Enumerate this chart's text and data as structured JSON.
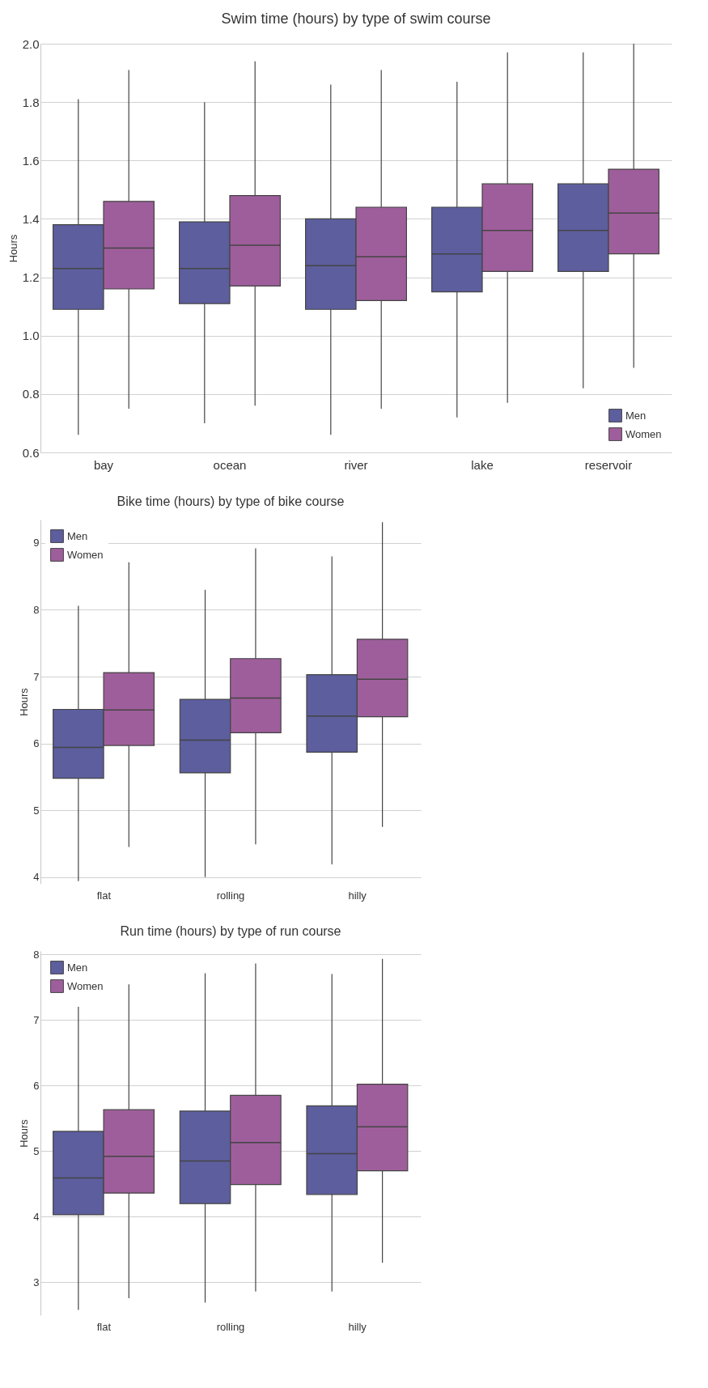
{
  "chart_data": [
    {
      "type": "box",
      "title": "Swim time (hours) by type of swim course",
      "ylabel": "Hours",
      "categories": [
        "bay",
        "ocean",
        "river",
        "lake",
        "reservoir"
      ],
      "series": [
        {
          "name": "Men",
          "color": "#5d5e9e",
          "boxes": [
            {
              "low": 0.66,
              "q1": 1.09,
              "median": 1.23,
              "q3": 1.38,
              "high": 1.81
            },
            {
              "low": 0.7,
              "q1": 1.11,
              "median": 1.23,
              "q3": 1.39,
              "high": 1.8
            },
            {
              "low": 0.66,
              "q1": 1.09,
              "median": 1.24,
              "q3": 1.4,
              "high": 1.86
            },
            {
              "low": 0.72,
              "q1": 1.15,
              "median": 1.28,
              "q3": 1.44,
              "high": 1.87
            },
            {
              "low": 0.82,
              "q1": 1.22,
              "median": 1.36,
              "q3": 1.52,
              "high": 1.97
            }
          ]
        },
        {
          "name": "Women",
          "color": "#9e5e9b",
          "boxes": [
            {
              "low": 0.75,
              "q1": 1.16,
              "median": 1.3,
              "q3": 1.46,
              "high": 1.91
            },
            {
              "low": 0.76,
              "q1": 1.17,
              "median": 1.31,
              "q3": 1.48,
              "high": 1.94
            },
            {
              "low": 0.75,
              "q1": 1.12,
              "median": 1.27,
              "q3": 1.44,
              "high": 1.91
            },
            {
              "low": 0.77,
              "q1": 1.22,
              "median": 1.36,
              "q3": 1.52,
              "high": 1.97
            },
            {
              "low": 0.89,
              "q1": 1.28,
              "median": 1.42,
              "q3": 1.57,
              "high": 2.0
            }
          ]
        }
      ],
      "ylim": [
        0.6,
        2.0
      ],
      "yticks": [
        0.6,
        0.8,
        {
          "value": 1,
          "label": "1.0"
        },
        1.2,
        1.4,
        1.6,
        1.8,
        {
          "value": 2,
          "label": "2.0"
        }
      ],
      "grid": "y",
      "legend": "bottom right"
    },
    {
      "type": "box",
      "title": "Bike time (hours) by type of bike course",
      "ylabel": "Hours",
      "categories": [
        "flat",
        "rolling",
        "hilly"
      ],
      "series": [
        {
          "name": "Men",
          "color": "#5d5e9e",
          "boxes": [
            {
              "low": 3.94,
              "q1": 5.48,
              "median": 5.94,
              "q3": 6.51,
              "high": 8.06
            },
            {
              "low": 4.0,
              "q1": 5.56,
              "median": 6.05,
              "q3": 6.66,
              "high": 8.3
            },
            {
              "low": 4.19,
              "q1": 5.87,
              "median": 6.41,
              "q3": 7.03,
              "high": 8.8
            }
          ]
        },
        {
          "name": "Women",
          "color": "#9e5e9b",
          "boxes": [
            {
              "low": 4.45,
              "q1": 5.97,
              "median": 6.5,
              "q3": 7.06,
              "high": 8.71
            },
            {
              "low": 4.49,
              "q1": 6.16,
              "median": 6.68,
              "q3": 7.27,
              "high": 8.92
            },
            {
              "low": 4.75,
              "q1": 6.4,
              "median": 6.96,
              "q3": 7.56,
              "high": 9.31
            }
          ]
        }
      ],
      "ylim": [
        3.9,
        9.35
      ],
      "yticks": [
        4,
        5,
        6,
        7,
        8,
        9
      ],
      "grid": "y",
      "legend": "top left"
    },
    {
      "type": "box",
      "title": "Run time (hours) by type of run course",
      "ylabel": "Hours",
      "categories": [
        "flat",
        "rolling",
        "hilly"
      ],
      "series": [
        {
          "name": "Men",
          "color": "#5d5e9e",
          "boxes": [
            {
              "low": 2.58,
              "q1": 4.03,
              "median": 4.59,
              "q3": 5.3,
              "high": 7.2
            },
            {
              "low": 2.69,
              "q1": 4.2,
              "median": 4.85,
              "q3": 5.61,
              "high": 7.71
            },
            {
              "low": 2.86,
              "q1": 4.34,
              "median": 4.96,
              "q3": 5.69,
              "high": 7.7
            }
          ]
        },
        {
          "name": "Women",
          "color": "#9e5e9b",
          "boxes": [
            {
              "low": 2.76,
              "q1": 4.36,
              "median": 4.92,
              "q3": 5.63,
              "high": 7.54
            },
            {
              "low": 2.86,
              "q1": 4.49,
              "median": 5.13,
              "q3": 5.85,
              "high": 7.86
            },
            {
              "low": 3.3,
              "q1": 4.7,
              "median": 5.37,
              "q3": 6.02,
              "high": 7.93
            }
          ]
        }
      ],
      "ylim": [
        2.5,
        8.05
      ],
      "yticks": [
        3,
        4,
        5,
        6,
        7,
        8
      ],
      "grid": "y",
      "legend": "top left"
    }
  ]
}
